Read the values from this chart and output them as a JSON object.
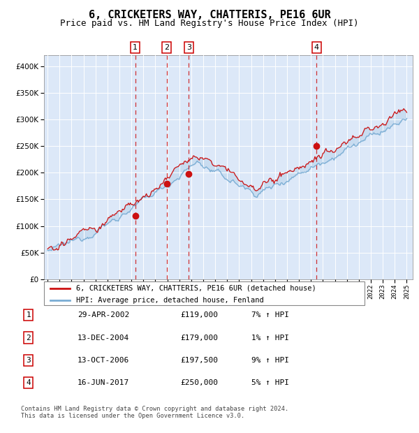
{
  "title": "6, CRICKETERS WAY, CHATTERIS, PE16 6UR",
  "subtitle": "Price paid vs. HM Land Registry's House Price Index (HPI)",
  "title_fontsize": 11,
  "subtitle_fontsize": 9,
  "plot_bg_color": "#dce8f8",
  "legend_line1": "6, CRICKETERS WAY, CHATTERIS, PE16 6UR (detached house)",
  "legend_line2": "HPI: Average price, detached house, Fenland",
  "footer": "Contains HM Land Registry data © Crown copyright and database right 2024.\nThis data is licensed under the Open Government Licence v3.0.",
  "transactions": [
    {
      "num": 1,
      "date": "29-APR-2002",
      "price": "£119,000",
      "hpi": "7% ↑ HPI",
      "year": 2002.32
    },
    {
      "num": 2,
      "date": "13-DEC-2004",
      "price": "£179,000",
      "hpi": "1% ↑ HPI",
      "year": 2004.95
    },
    {
      "num": 3,
      "date": "13-OCT-2006",
      "price": "£197,500",
      "hpi": "9% ↑ HPI",
      "year": 2006.79
    },
    {
      "num": 4,
      "date": "16-JUN-2017",
      "price": "£250,000",
      "hpi": "5% ↑ HPI",
      "year": 2017.46
    }
  ],
  "transaction_values": [
    119000,
    179000,
    197500,
    250000
  ],
  "hpi_color": "#7aadd4",
  "price_color": "#cc1111",
  "marker_color": "#cc1111",
  "dashed_line_color": "#cc1111",
  "ylim": [
    0,
    420000
  ],
  "yticks": [
    0,
    50000,
    100000,
    150000,
    200000,
    250000,
    300000,
    350000,
    400000
  ],
  "year_start": 1995,
  "year_end": 2025
}
